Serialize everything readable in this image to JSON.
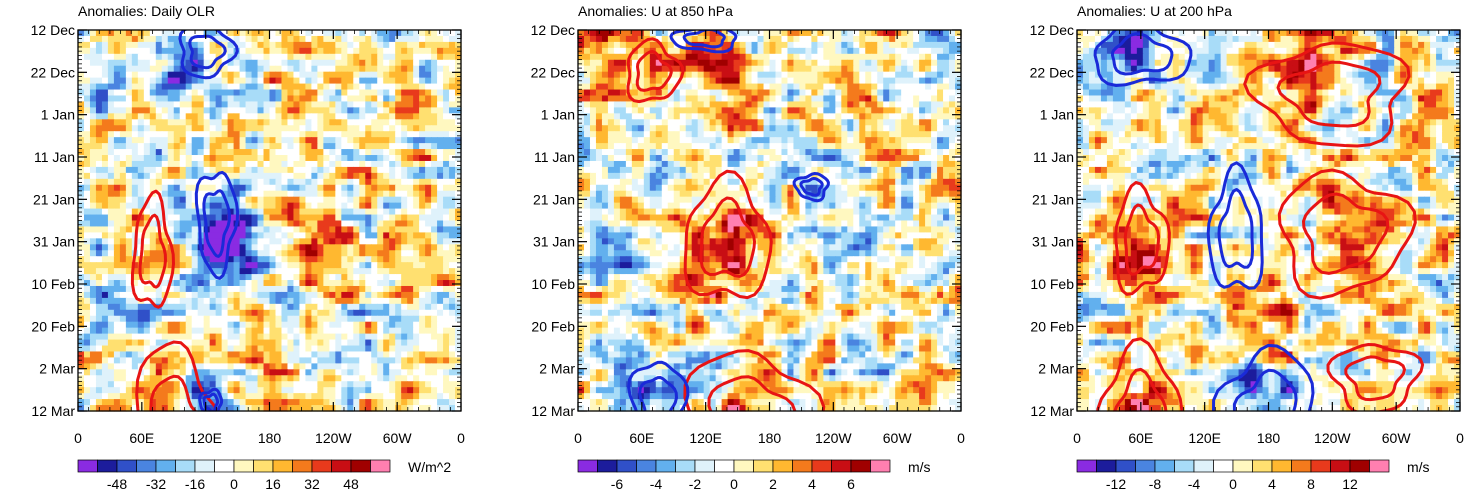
{
  "palette": [
    "#8a2be2",
    "#1c1c9c",
    "#3050c8",
    "#4a84e0",
    "#62b0ee",
    "#a8dcf8",
    "#dff2fb",
    "#ffffff",
    "#fff8c0",
    "#ffe070",
    "#ffb830",
    "#f47a1c",
    "#e83a1c",
    "#c80e14",
    "#a00000",
    "#ff7fb0"
  ],
  "contour_colors": {
    "positive": "#e81414",
    "negative": "#1a2ad8"
  },
  "chart_data": [
    {
      "type": "heatmap",
      "title": "Anomalies: Daily OLR",
      "ylabels": [
        "12 Dec",
        "22 Dec",
        "1 Jan",
        "11 Jan",
        "21 Jan",
        "31 Jan",
        "10 Feb",
        "20 Feb",
        "2 Mar",
        "12 Mar"
      ],
      "xlabels": [
        "0",
        "60E",
        "120E",
        "180",
        "120W",
        "60W",
        "0"
      ],
      "xrange": [
        0,
        360
      ],
      "colorbar": {
        "ticks": [
          "-48",
          "-32",
          "-16",
          "0",
          "16",
          "32",
          "48"
        ],
        "units": "W/m^2",
        "range": [
          -64,
          64
        ]
      },
      "features": [
        {
          "sign": -1,
          "lon": 95,
          "day": 10,
          "amp": 35
        },
        {
          "sign": -1,
          "lon": 130,
          "day": 45,
          "amp": 45
        },
        {
          "sign": -1,
          "lon": 140,
          "day": 55,
          "amp": 40
        },
        {
          "sign": -1,
          "lon": 120,
          "day": 90,
          "amp": 40
        },
        {
          "sign": -1,
          "lon": 45,
          "day": 60,
          "amp": 30
        },
        {
          "sign": 1,
          "lon": 70,
          "day": 55,
          "amp": 30
        },
        {
          "sign": 1,
          "lon": 80,
          "day": 95,
          "amp": 30
        },
        {
          "sign": 1,
          "lon": 220,
          "day": 50,
          "amp": 25
        },
        {
          "sign": 1,
          "lon": 180,
          "day": 80,
          "amp": 25
        }
      ],
      "contours": [
        {
          "sign": 1,
          "lon": 70,
          "day": 53,
          "rlon": 18,
          "rday": 13
        },
        {
          "sign": 1,
          "lon": 90,
          "day": 95,
          "rlon": 40,
          "rday": 20
        },
        {
          "sign": -1,
          "lon": 120,
          "day": 5,
          "rlon": 25,
          "rday": 6
        },
        {
          "sign": -1,
          "lon": 130,
          "day": 45,
          "rlon": 18,
          "rday": 12
        },
        {
          "sign": -1,
          "lon": 125,
          "day": 88,
          "rlon": 10,
          "rday": 3
        }
      ]
    },
    {
      "type": "heatmap",
      "title": "Anomalies: U at 850 hPa",
      "ylabels": [
        "12 Dec",
        "22 Dec",
        "1 Jan",
        "11 Jan",
        "21 Jan",
        "31 Jan",
        "10 Feb",
        "20 Feb",
        "2 Mar",
        "12 Mar"
      ],
      "xlabels": [
        "0",
        "60E",
        "120E",
        "180",
        "120W",
        "60W",
        "0"
      ],
      "xrange": [
        0,
        360
      ],
      "colorbar": {
        "ticks": [
          "-6",
          "-4",
          "-2",
          "0",
          "2",
          "4",
          "6"
        ],
        "units": "m/s",
        "range": [
          -8,
          8
        ]
      },
      "features": [
        {
          "sign": 1,
          "lon": 140,
          "day": 50,
          "amp": 7
        },
        {
          "sign": 1,
          "lon": 160,
          "day": 95,
          "amp": 6
        },
        {
          "sign": 1,
          "lon": 50,
          "day": 5,
          "amp": 4
        },
        {
          "sign": 1,
          "lon": 130,
          "day": 10,
          "amp": 4
        },
        {
          "sign": -1,
          "lon": 70,
          "day": 85,
          "amp": 5
        },
        {
          "sign": -1,
          "lon": 230,
          "day": 40,
          "amp": 3
        },
        {
          "sign": -1,
          "lon": 30,
          "day": 50,
          "amp": 3
        }
      ],
      "contours": [
        {
          "sign": 1,
          "lon": 140,
          "day": 50,
          "rlon": 40,
          "rday": 14
        },
        {
          "sign": 1,
          "lon": 70,
          "day": 10,
          "rlon": 25,
          "rday": 7
        },
        {
          "sign": 1,
          "lon": 160,
          "day": 92,
          "rlon": 60,
          "rday": 16
        },
        {
          "sign": -1,
          "lon": 75,
          "day": 88,
          "rlon": 25,
          "rday": 10
        },
        {
          "sign": -1,
          "lon": 220,
          "day": 37,
          "rlon": 15,
          "rday": 3
        },
        {
          "sign": -1,
          "lon": 120,
          "day": 2,
          "rlon": 30,
          "rday": 3
        }
      ]
    },
    {
      "type": "heatmap",
      "title": "Anomalies: U at 200 hPa",
      "ylabels": [
        "12 Dec",
        "22 Dec",
        "1 Jan",
        "11 Jan",
        "21 Jan",
        "31 Jan",
        "10 Feb",
        "20 Feb",
        "2 Mar",
        "12 Mar"
      ],
      "xlabels": [
        "0",
        "60E",
        "120E",
        "180",
        "120W",
        "60W",
        "0"
      ],
      "xrange": [
        0,
        360
      ],
      "colorbar": {
        "ticks": [
          "-12",
          "-8",
          "-4",
          "0",
          "4",
          "8",
          "12"
        ],
        "units": "m/s",
        "range": [
          -16,
          16
        ]
      },
      "features": [
        {
          "sign": 1,
          "lon": 60,
          "day": 52,
          "amp": 12
        },
        {
          "sign": 1,
          "lon": 55,
          "day": 92,
          "amp": 12
        },
        {
          "sign": 1,
          "lon": 220,
          "day": 10,
          "amp": 10
        },
        {
          "sign": 1,
          "lon": 260,
          "day": 45,
          "amp": 8
        },
        {
          "sign": 1,
          "lon": 170,
          "day": 62,
          "amp": 10
        },
        {
          "sign": -1,
          "lon": 180,
          "day": 92,
          "amp": 12
        },
        {
          "sign": -1,
          "lon": 60,
          "day": 5,
          "amp": 8
        },
        {
          "sign": -1,
          "lon": 160,
          "day": 50,
          "amp": 6
        }
      ],
      "contours": [
        {
          "sign": 1,
          "lon": 60,
          "day": 92,
          "rlon": 40,
          "rday": 16
        },
        {
          "sign": 1,
          "lon": 60,
          "day": 50,
          "rlon": 25,
          "rday": 12
        },
        {
          "sign": 1,
          "lon": 250,
          "day": 48,
          "rlon": 60,
          "rday": 14
        },
        {
          "sign": 1,
          "lon": 280,
          "day": 82,
          "rlon": 40,
          "rday": 8
        },
        {
          "sign": 1,
          "lon": 240,
          "day": 15,
          "rlon": 70,
          "rday": 12
        },
        {
          "sign": -1,
          "lon": 180,
          "day": 90,
          "rlon": 45,
          "rday": 14
        },
        {
          "sign": -1,
          "lon": 150,
          "day": 48,
          "rlon": 25,
          "rday": 14
        },
        {
          "sign": -1,
          "lon": 60,
          "day": 6,
          "rlon": 45,
          "rday": 7
        }
      ]
    }
  ]
}
